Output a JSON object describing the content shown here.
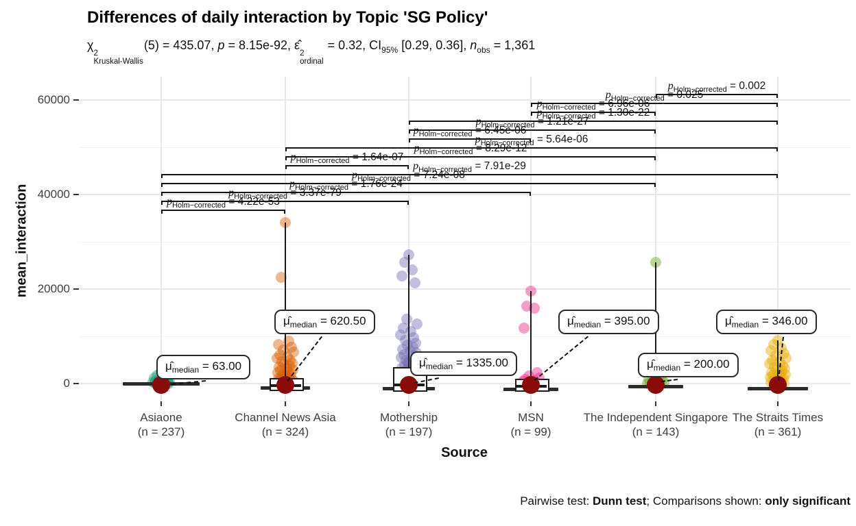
{
  "title": "Differences of daily interaction by Topic 'SG Policy'",
  "subtitle_segments": [
    {
      "t": "χ",
      "s": "n"
    },
    {
      "sup": "2",
      "sub": "Kruskal-Wallis",
      "s": "ss"
    },
    {
      "t": "(5) = 435.07, ",
      "s": "n"
    },
    {
      "t": "p",
      "s": "i"
    },
    {
      "t": " = 8.15e-92, ",
      "s": "n"
    },
    {
      "t": "ε̂",
      "s": "n"
    },
    {
      "sup": "2",
      "sub": "ordinal",
      "s": "ss"
    },
    {
      "t": " = 0.32, CI",
      "s": "n"
    },
    {
      "t": "95%",
      "s": "sub"
    },
    {
      "t": " [0.29, 0.36], ",
      "s": "n"
    },
    {
      "t": "n",
      "s": "i"
    },
    {
      "t": "obs",
      "s": "sub"
    },
    {
      "t": " = 1,361",
      "s": "n"
    }
  ],
  "caption_segments": [
    {
      "t": "Pairwise test: ",
      "b": false
    },
    {
      "t": "Dunn test",
      "b": true
    },
    {
      "t": "; Comparisons shown: ",
      "b": false
    },
    {
      "t": "only significant",
      "b": true
    }
  ],
  "x_axis": {
    "title": "Source"
  },
  "y_axis": {
    "title": "mean_interaction",
    "tick_labels": [
      "0",
      "20000",
      "40000",
      "60000"
    ],
    "tick_values": [
      0,
      20000,
      40000,
      60000
    ]
  },
  "stats": {
    "test": "Kruskal-Wallis",
    "df": "5",
    "chi_squared": "435.07",
    "p": "8.15e-92",
    "epsilon_squared_ordinal": "0.32",
    "ci_95": "[0.29, 0.36]",
    "n_obs": "1,361"
  },
  "chart_data": {
    "type": "box-jitter",
    "title": "Differences of daily interaction by Topic 'SG Policy'",
    "xlabel": "Source",
    "ylabel": "mean_interaction",
    "ylim": [
      0,
      62000
    ],
    "grid": true,
    "median_point_color": "#8b0b0b",
    "p_label_prefix": {
      "p": "p",
      "sub": "Holm−corrected"
    },
    "median_label_mu": "μ̂",
    "median_label_sub": "median",
    "categories": [
      "Asiaone",
      "Channel News Asia",
      "Mothership",
      "MSN",
      "The Independent Singapore",
      "The Straits Times"
    ],
    "groups": [
      {
        "label": "Asiaone",
        "n": 237,
        "n_text": "(n = 237)",
        "color": "#1b9e77",
        "median": 63.0,
        "median_text": "63.00",
        "whisker_max": null,
        "points": [
          2400,
          1800,
          1400,
          1100,
          900,
          750,
          620,
          520,
          430,
          360,
          300,
          250,
          200,
          160,
          120,
          90,
          63,
          40,
          20,
          10
        ]
      },
      {
        "label": "Channel News Asia",
        "n": 324,
        "n_text": "(n = 324)",
        "color": "#d95f02",
        "median": 620.5,
        "median_text": "620.50",
        "whisker_max": 34000,
        "points": [
          34000,
          22400,
          9000,
          8300,
          7700,
          7100,
          6600,
          6100,
          5700,
          5300,
          4900,
          4600,
          4300,
          4000,
          3700,
          3450,
          3200,
          2950,
          2700,
          2500,
          2300,
          2100,
          1900,
          1750,
          1600,
          1450,
          1300,
          1150,
          1000,
          870,
          750,
          620,
          500,
          380,
          260,
          140
        ]
      },
      {
        "label": "Mothership",
        "n": 197,
        "n_text": "(n = 197)",
        "color": "#7570b3",
        "median": 1335.0,
        "median_text": "1335.00",
        "whisker_max": 27200,
        "points": [
          27200,
          25600,
          24100,
          22700,
          21300,
          13600,
          12600,
          11800,
          11000,
          10300,
          9700,
          9100,
          8600,
          8100,
          7700,
          7300,
          6900,
          6500,
          6100,
          5800,
          5500,
          5200,
          4900,
          4600,
          4300,
          4050,
          3800,
          3550,
          3300,
          3100,
          2900,
          2700,
          2500,
          2300,
          2100,
          1900,
          1700,
          1500,
          1335,
          1150,
          950,
          750,
          550,
          350,
          150
        ]
      },
      {
        "label": "MSN",
        "n": 99,
        "n_text": "(n = 99)",
        "color": "#e7298a",
        "median": 395.0,
        "median_text": "395.00",
        "whisker_max": 19500,
        "points": [
          19500,
          16400,
          15900,
          11700,
          2300,
          1600,
          1150,
          800,
          560,
          395,
          260,
          150,
          70
        ]
      },
      {
        "label": "The Independent Singapore",
        "n": 143,
        "n_text": "(n = 143)",
        "color": "#66a61e",
        "median": 200.0,
        "median_text": "200.00",
        "whisker_max": 25600,
        "points": [
          25600,
          2000,
          1400,
          950,
          640,
          420,
          280,
          200,
          130,
          70
        ]
      },
      {
        "label": "The Straits Times",
        "n": 361,
        "n_text": "(n = 361)",
        "color": "#e6ab02",
        "median": 346.0,
        "median_text": "346.00",
        "whisker_max": 9100,
        "points": [
          9100,
          8300,
          7600,
          7000,
          6400,
          5900,
          5400,
          4950,
          4550,
          4150,
          3800,
          3450,
          3150,
          2850,
          2600,
          2350,
          2100,
          1900,
          1700,
          1500,
          1320,
          1150,
          1000,
          850,
          700,
          560,
          430,
          346,
          230,
          120
        ]
      }
    ],
    "pairwise_comparisons": [
      {
        "a": 0,
        "b": 1,
        "group1": "Asiaone",
        "group2": "Channel News Asia",
        "p_holm": "4.22e-53"
      },
      {
        "a": 0,
        "b": 2,
        "group1": "Asiaone",
        "group2": "Mothership",
        "p_holm": "3.37e-79"
      },
      {
        "a": 0,
        "b": 3,
        "group1": "Asiaone",
        "group2": "MSN",
        "p_holm": "1.76e-24"
      },
      {
        "a": 0,
        "b": 4,
        "group1": "Asiaone",
        "group2": "The Independent Singapore",
        "p_holm": "7.24e-08"
      },
      {
        "a": 0,
        "b": 5,
        "group1": "Asiaone",
        "group2": "The Straits Times",
        "p_holm": "7.91e-29"
      },
      {
        "a": 1,
        "b": 2,
        "group1": "Channel News Asia",
        "group2": "Mothership",
        "p_holm": "1.64e-07"
      },
      {
        "a": 1,
        "b": 4,
        "group1": "Channel News Asia",
        "group2": "The Independent Singapore",
        "p_holm": "8.29e-12"
      },
      {
        "a": 1,
        "b": 5,
        "group1": "Channel News Asia",
        "group2": "The Straits Times",
        "p_holm": "5.64e-06"
      },
      {
        "a": 2,
        "b": 3,
        "group1": "Mothership",
        "group2": "MSN",
        "p_holm": "6.45e-06"
      },
      {
        "a": 2,
        "b": 4,
        "group1": "Mothership",
        "group2": "The Independent Singapore",
        "p_holm": "1.21e-27"
      },
      {
        "a": 2,
        "b": 5,
        "group1": "Mothership",
        "group2": "The Straits Times",
        "p_holm": "1.30e-22"
      },
      {
        "a": 3,
        "b": 4,
        "group1": "MSN",
        "group2": "The Independent Singapore",
        "p_holm": "6.96e-06"
      },
      {
        "a": 3,
        "b": 5,
        "group1": "MSN",
        "group2": "The Straits Times",
        "p_holm": "0.025"
      },
      {
        "a": 4,
        "b": 5,
        "group1": "The Independent Singapore",
        "group2": "The Straits Times",
        "p_holm": "0.002"
      }
    ]
  }
}
